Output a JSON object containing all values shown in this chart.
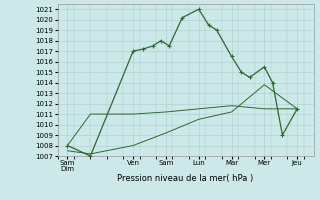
{
  "background_color": "#cce8e8",
  "grid_color": "#aacccc",
  "line_color": "#2d6a2d",
  "xlabel": "Pression niveau de la mer( hPa )",
  "ylim": [
    1007,
    1021.5
  ],
  "yticks": [
    1007,
    1008,
    1009,
    1010,
    1011,
    1012,
    1013,
    1014,
    1015,
    1016,
    1017,
    1018,
    1019,
    1020,
    1021
  ],
  "xtick_labels": [
    "Sam\nDim",
    "Ven",
    "Sam",
    "Lun",
    "Mar",
    "Mer",
    "Jeu"
  ],
  "xtick_positions": [
    0,
    2,
    3,
    4,
    5,
    6,
    7
  ],
  "xlim": [
    -0.3,
    7.5
  ],
  "series1_x": [
    0.0,
    0.7,
    2.0,
    2.3,
    2.6,
    2.85,
    3.1,
    3.5,
    4.0,
    4.3,
    4.55,
    5.0,
    5.3,
    5.55,
    6.0,
    6.25,
    6.55,
    7.0
  ],
  "series1_y": [
    1008.0,
    1007.0,
    1017.0,
    1017.2,
    1017.5,
    1018.0,
    1017.5,
    1020.2,
    1021.0,
    1019.5,
    1019.0,
    1016.5,
    1015.0,
    1014.5,
    1015.5,
    1014.0,
    1009.0,
    1011.5
  ],
  "series2_x": [
    0.0,
    0.7,
    2.0,
    3.0,
    4.0,
    5.0,
    6.0,
    6.25,
    6.5,
    7.0
  ],
  "series2_y": [
    1008.0,
    1011.0,
    1011.0,
    1011.2,
    1011.5,
    1011.8,
    1011.5,
    1011.5,
    1011.5,
    1011.5
  ],
  "series3_x": [
    0.0,
    0.7,
    2.0,
    3.0,
    4.0,
    5.0,
    6.0,
    7.0
  ],
  "series3_y": [
    1007.5,
    1007.2,
    1008.0,
    1009.2,
    1010.5,
    1011.2,
    1013.8,
    1011.5
  ]
}
